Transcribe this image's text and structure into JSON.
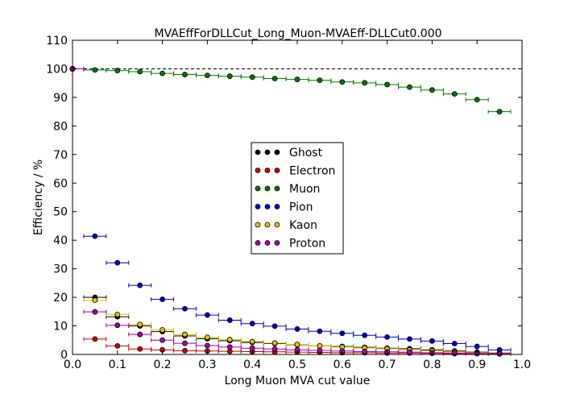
{
  "chart_data": {
    "type": "scatter",
    "title": "MVAEffForDLLCut_Long_Muon-MVAEff-DLLCut0.000",
    "xlabel": "Long Muon MVA cut value",
    "ylabel": "Efficiency / %",
    "xlim": [
      0.0,
      1.0
    ],
    "ylim": [
      0,
      110
    ],
    "x_ticks": [
      "0.0",
      "0.1",
      "0.2",
      "0.3",
      "0.4",
      "0.5",
      "0.6",
      "0.7",
      "0.8",
      "0.9",
      "1.0"
    ],
    "y_ticks": [
      "0",
      "10",
      "20",
      "30",
      "40",
      "50",
      "60",
      "70",
      "80",
      "90",
      "100",
      "110"
    ],
    "reference_line": 100,
    "legend_position": "center",
    "x": [
      0.0,
      0.05,
      0.1,
      0.15,
      0.2,
      0.25,
      0.3,
      0.35,
      0.4,
      0.45,
      0.5,
      0.55,
      0.6,
      0.65,
      0.7,
      0.75,
      0.8,
      0.85,
      0.9,
      0.95
    ],
    "x_bin_halfwidth": 0.025,
    "series": [
      {
        "name": "Ghost",
        "color": "#000000",
        "values": [
          100,
          20.0,
          13.2,
          10.0,
          8.0,
          6.5,
          5.5,
          4.8,
          4.2,
          3.8,
          3.4,
          3.0,
          2.8,
          2.5,
          2.2,
          2.0,
          1.6,
          1.2,
          0.8,
          0.5
        ]
      },
      {
        "name": "Electron",
        "color": "#cc0000",
        "values": [
          100,
          5.4,
          3.0,
          1.9,
          1.6,
          1.3,
          1.2,
          1.1,
          1.0,
          0.9,
          0.8,
          0.7,
          0.6,
          0.6,
          0.5,
          0.5,
          0.4,
          0.3,
          0.3,
          0.2
        ]
      },
      {
        "name": "Muon",
        "color": "#007a00",
        "values": [
          100,
          99.6,
          99.4,
          99.0,
          98.4,
          98.0,
          97.7,
          97.4,
          97.1,
          96.6,
          96.3,
          96.0,
          95.4,
          95.1,
          94.5,
          93.6,
          92.6,
          91.2,
          89.2,
          85.0
        ]
      },
      {
        "name": "Pion",
        "color": "#0000cc",
        "values": [
          100,
          41.4,
          32.1,
          24.2,
          19.3,
          16.0,
          13.8,
          12.0,
          10.8,
          9.9,
          8.9,
          8.1,
          7.4,
          6.7,
          6.1,
          5.4,
          4.7,
          3.8,
          2.8,
          1.6
        ]
      },
      {
        "name": "Kaon",
        "color": "#e6c200",
        "values": [
          100,
          19.0,
          14.0,
          10.5,
          8.6,
          7.0,
          6.0,
          5.2,
          4.5,
          4.0,
          3.5,
          3.0,
          2.6,
          2.3,
          2.0,
          1.6,
          1.3,
          0.9,
          0.6,
          0.3
        ]
      },
      {
        "name": "Proton",
        "color": "#aa00aa",
        "values": [
          100,
          14.9,
          10.2,
          7.0,
          5.0,
          3.9,
          3.1,
          2.6,
          2.2,
          1.9,
          1.6,
          1.4,
          1.2,
          1.0,
          0.9,
          0.8,
          0.6,
          0.5,
          0.3,
          0.2
        ]
      }
    ]
  }
}
